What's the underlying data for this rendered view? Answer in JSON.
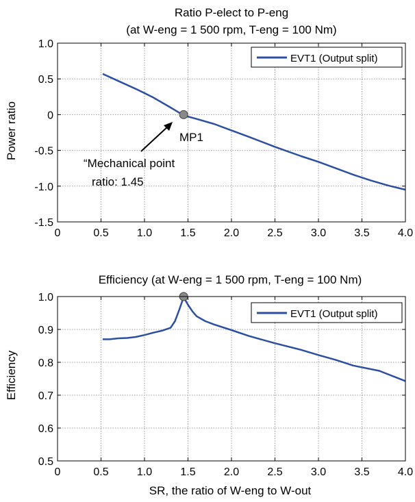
{
  "chart_data": [
    {
      "type": "line",
      "title": "Ratio P-elect to P-eng",
      "subtitle": "(at W-eng = 1 500 rpm, T-eng = 100 Nm)",
      "xlabel": "",
      "ylabel": "Power ratio",
      "xlim": [
        0,
        4.0
      ],
      "ylim": [
        -1.5,
        1.0
      ],
      "xticks": [
        "0",
        "0.5",
        "1.0",
        "1.5",
        "2.0",
        "2.5",
        "3.0",
        "3.5",
        "4.0"
      ],
      "yticks": [
        "-1.5",
        "-1.0",
        "-0.5",
        "0",
        "0.5",
        "1.0"
      ],
      "grid": true,
      "legend": "top-right",
      "series": [
        {
          "name": "EVT1 (Output split)",
          "color": "#2c4fa3",
          "x": [
            0.52,
            0.7,
            0.9,
            1.1,
            1.3,
            1.45,
            1.6,
            1.8,
            2.0,
            2.2,
            2.5,
            2.8,
            3.0,
            3.2,
            3.4,
            3.6,
            3.8,
            4.0
          ],
          "y": [
            0.57,
            0.47,
            0.36,
            0.24,
            0.1,
            -0.01,
            -0.06,
            -0.13,
            -0.22,
            -0.31,
            -0.45,
            -0.58,
            -0.66,
            -0.75,
            -0.84,
            -0.92,
            -0.99,
            -1.05
          ]
        }
      ],
      "marker": {
        "label": "MP1",
        "x": 1.45,
        "y": 0.0,
        "color": "#8a8a8a"
      },
      "annotation": {
        "line1": "“Mechanical point",
        "line2": "ratio: 1.45"
      }
    },
    {
      "type": "line",
      "title": "Efficiency (at W-eng = 1 500 rpm, T-eng = 100 Nm)",
      "xlabel": "SR, the ratio of W-eng to W-out",
      "ylabel": "Efficiency",
      "xlim": [
        0,
        4.0
      ],
      "ylim": [
        0.5,
        1.0
      ],
      "xticks": [
        "0",
        "0.5",
        "1.0",
        "1.5",
        "2.0",
        "2.5",
        "3.0",
        "3.5",
        "4.0"
      ],
      "yticks": [
        "0.5",
        "0.6",
        "0.7",
        "0.8",
        "0.9",
        "1.0"
      ],
      "grid": true,
      "legend": "top-right",
      "series": [
        {
          "name": "EVT1 (Output split)",
          "color": "#2c4fa3",
          "x": [
            0.52,
            0.6,
            0.7,
            0.8,
            0.9,
            1.0,
            1.1,
            1.2,
            1.3,
            1.35,
            1.4,
            1.45,
            1.5,
            1.55,
            1.6,
            1.7,
            1.8,
            2.0,
            2.2,
            2.5,
            2.8,
            3.0,
            3.2,
            3.4,
            3.7,
            4.0
          ],
          "y": [
            0.87,
            0.87,
            0.873,
            0.874,
            0.877,
            0.883,
            0.89,
            0.896,
            0.905,
            0.925,
            0.96,
            0.998,
            0.975,
            0.955,
            0.94,
            0.925,
            0.915,
            0.898,
            0.88,
            0.858,
            0.838,
            0.822,
            0.807,
            0.79,
            0.774,
            0.743
          ]
        }
      ],
      "marker": {
        "x": 1.45,
        "y": 1.0,
        "color": "#8a8a8a"
      }
    }
  ]
}
